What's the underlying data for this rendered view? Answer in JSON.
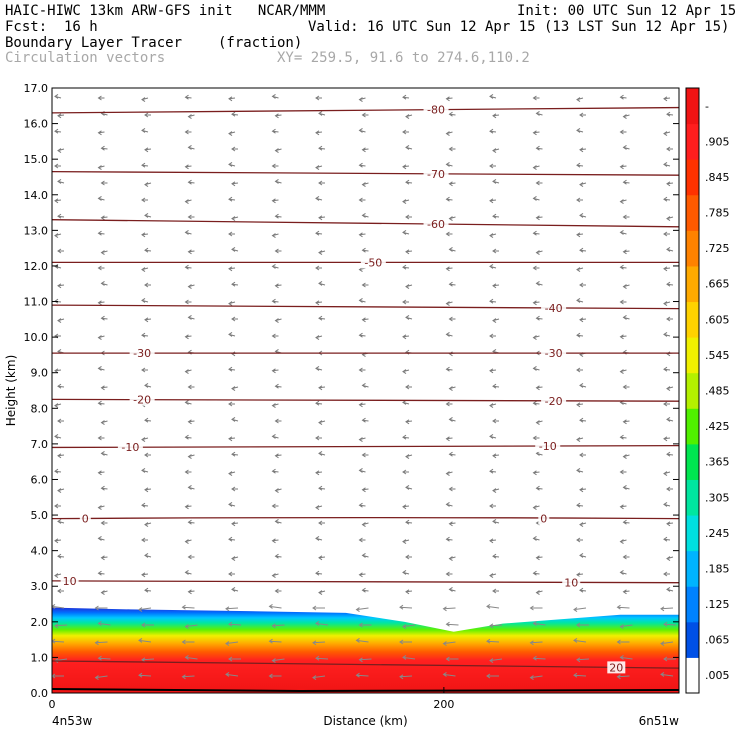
{
  "header": {
    "title": "HAIC-HIWC 13km ARW-GFS init   NCAR/MMM",
    "init": "Init: 00 UTC Sun 12 Apr 15",
    "fcst_label": "Fcst:",
    "fcst_value": "16 h",
    "valid": "Valid: 16 UTC Sun 12 Apr 15 (13 LST Sun 12 Apr 15)",
    "field": "Boundary Layer Tracer",
    "field_units": "(fraction)",
    "vectors": "Circulation vectors",
    "xy": "XY= 259.5, 91.6 to 274.6,110.2"
  },
  "chart_data": {
    "type": "heatmap",
    "xlabel": "Distance (km)",
    "ylabel": "Height (km)",
    "xlim": [
      0,
      320
    ],
    "ylim": [
      0,
      17
    ],
    "x_ticks": [
      {
        "value": 0,
        "label": "0"
      },
      {
        "value": 200,
        "label": "200"
      }
    ],
    "x_endpoints": {
      "left": "4n53w",
      "right": "6n51w"
    },
    "y_ticks": [
      "0.0",
      "1.0",
      "2.0",
      "3.0",
      "4.0",
      "5.0",
      "6.0",
      "7.0",
      "8.0",
      "9.0",
      "10.0",
      "11.0",
      "12.0",
      "13.0",
      "14.0",
      "15.0",
      "16.0",
      "17.0"
    ],
    "colorbar": {
      "labels": [
        ".005",
        ".065",
        ".125",
        ".185",
        ".245",
        ".305",
        ".365",
        ".425",
        ".485",
        ".545",
        ".605",
        ".665",
        ".725",
        ".785",
        ".845",
        ".905",
        "-"
      ],
      "colors": [
        "#ffffff",
        "#0050e6",
        "#0082ff",
        "#00b4ff",
        "#00e0e0",
        "#00e6a0",
        "#00e650",
        "#50f000",
        "#b4f000",
        "#f0f000",
        "#ffd200",
        "#ffaa00",
        "#ff8200",
        "#ff5a00",
        "#ff3200",
        "#ff1e1e",
        "#f01414"
      ]
    },
    "tracer_top_km": [
      [
        0,
        2.4
      ],
      [
        40,
        2.35
      ],
      [
        100,
        2.3
      ],
      [
        150,
        2.25
      ],
      [
        180,
        2.0
      ],
      [
        205,
        1.72
      ],
      [
        230,
        1.95
      ],
      [
        290,
        2.2
      ],
      [
        320,
        2.2
      ]
    ],
    "isotherms_degC": [
      {
        "value": -80,
        "label": "-80",
        "label_x": 196,
        "h_left": 16.3,
        "h_right": 16.45
      },
      {
        "value": -70,
        "label": "-70",
        "label_x": 196,
        "h_left": 14.65,
        "h_right": 14.55
      },
      {
        "value": -60,
        "label": "-60",
        "label_x": 196,
        "h_left": 13.3,
        "h_right": 13.1
      },
      {
        "value": -50,
        "label": "-50",
        "label_x": 164,
        "h_left": 12.1,
        "h_right": 12.1
      },
      {
        "value": -40,
        "label": "-40",
        "label_x": 256,
        "h_left": 10.9,
        "h_right": 10.8
      },
      {
        "value": -30,
        "label": "-30",
        "label_x": 46,
        "label_x2": 256,
        "h_left": 9.55,
        "h_right": 9.55
      },
      {
        "value": -20,
        "label": "-20",
        "label_x": 46,
        "label_x2": 256,
        "h_left": 8.25,
        "h_right": 8.2
      },
      {
        "value": -10,
        "label": "-10",
        "label_x": 40,
        "label_x2": 253,
        "h_left": 6.9,
        "h_right": 6.95
      },
      {
        "value": 0,
        "label": "0",
        "label_x": 17,
        "label_x2": 251,
        "h_left": 4.9,
        "h_right": 4.9
      },
      {
        "value": 10,
        "label": "10",
        "label_x": 9,
        "label_x2": 265,
        "h_left": 3.15,
        "h_right": 3.1
      },
      {
        "value": 20,
        "label": "20",
        "label_x": 288,
        "h_left": 0.9,
        "h_right": 0.7
      }
    ]
  }
}
